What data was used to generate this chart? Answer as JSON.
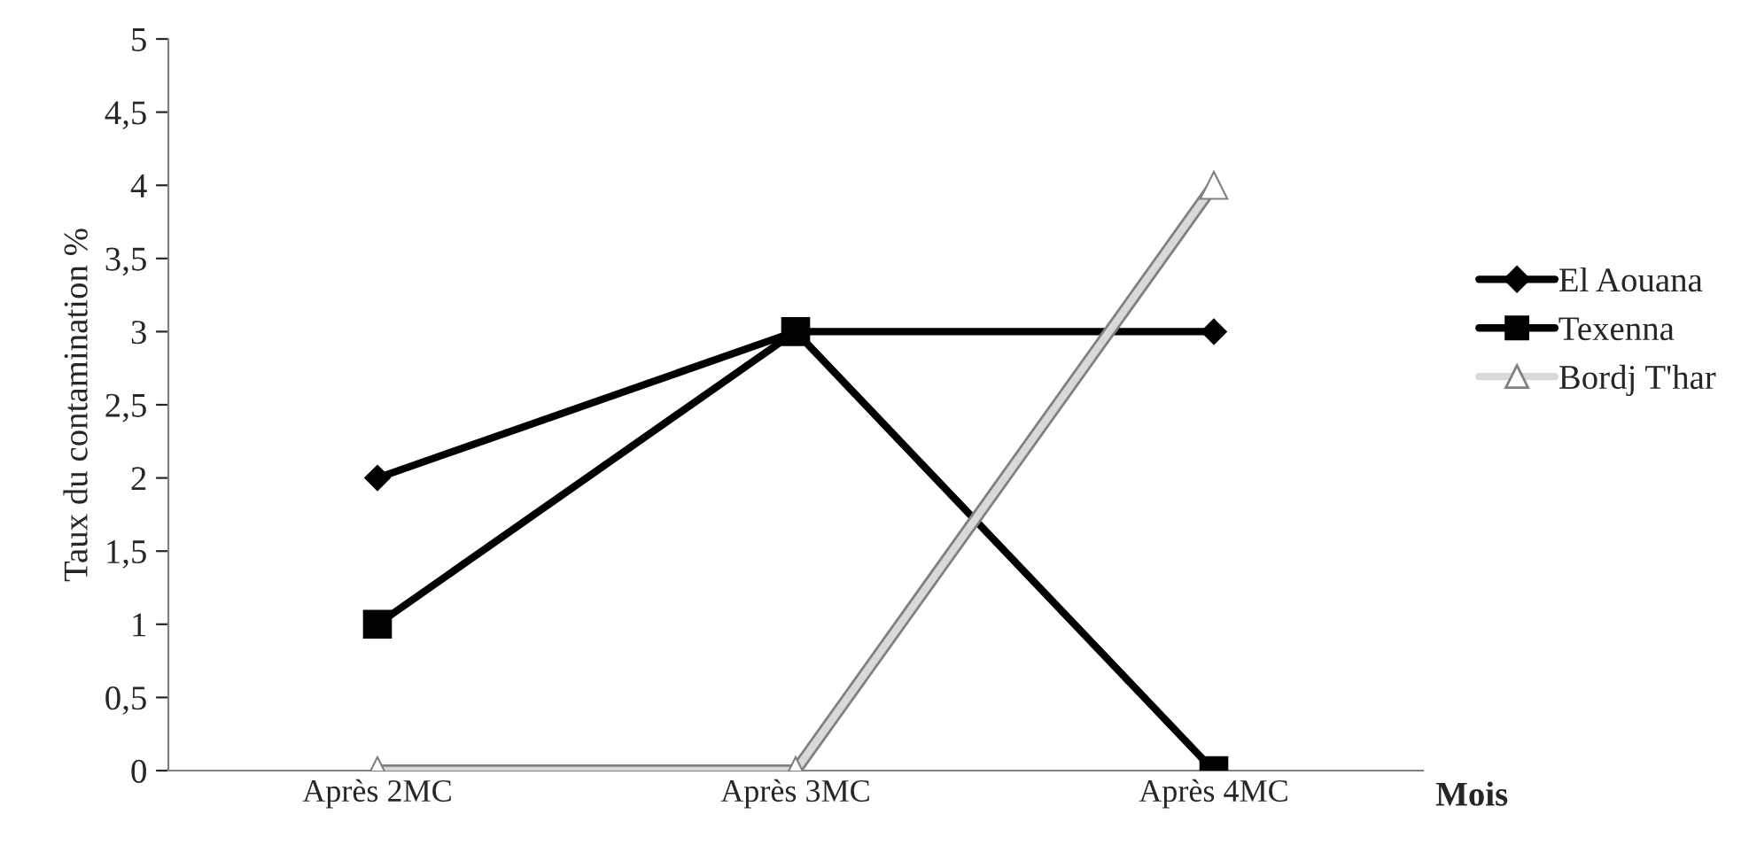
{
  "chart_data": {
    "type": "line",
    "ylabel": "Taux du contamination %",
    "xlabel": "Mois",
    "categories": [
      "Après 2MC",
      "Après 3MC",
      "Après 4MC"
    ],
    "series": [
      {
        "name": "El Aouana",
        "color": "#000000",
        "marker": "diamond",
        "values": [
          2,
          3,
          3
        ]
      },
      {
        "name": "Texenna",
        "color": "#000000",
        "marker": "square",
        "values": [
          1,
          3,
          0
        ]
      },
      {
        "name": "Bordj T'har",
        "color": "#d9d9d9",
        "marker": "triangle",
        "values": [
          0,
          0,
          4
        ]
      }
    ],
    "ylim": [
      0,
      5
    ],
    "yticks": [
      0,
      {
        "value": 0.5,
        "label": "0,5"
      },
      1,
      {
        "value": 1.5,
        "label": "1,5"
      },
      2,
      {
        "value": 2.5,
        "label": "2,5"
      },
      3,
      {
        "value": 3.5,
        "label": "3,5"
      },
      4,
      {
        "value": 4.5,
        "label": "4,5"
      },
      5
    ],
    "grid": false,
    "legend": "right"
  }
}
